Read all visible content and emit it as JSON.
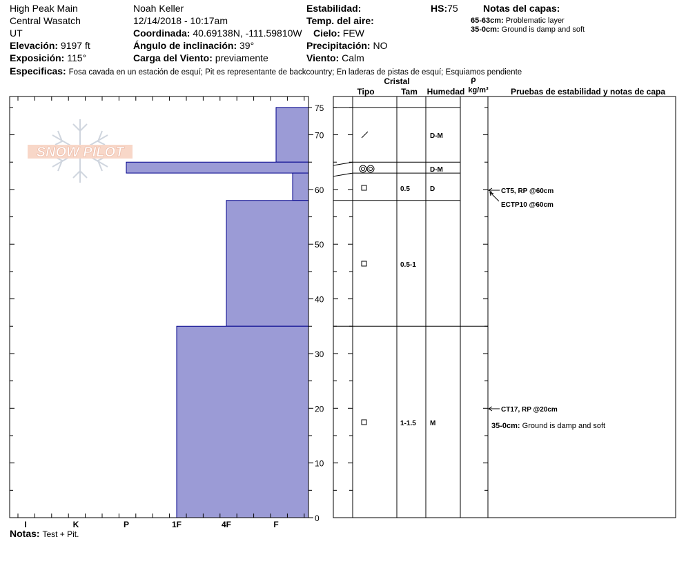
{
  "header": {
    "location": "High Peak Main",
    "observer": "Noah Keller",
    "stability_label": "Estabilidad:",
    "hs_label": "HS:",
    "hs_value": "75",
    "layer_notes_label": "Notas del capas:",
    "region": "Central Wasatch",
    "datetime": "12/14/2018 - 10:17am",
    "air_temp_label": "Temp. del aire:",
    "state": "UT",
    "coord_label": "Coordinada:",
    "coord_value": "40.69138N, -111.59810W",
    "sky_label": "Cielo:",
    "sky_value": "FEW",
    "elev_label": "Elevación:",
    "elev_value": "9197 ft",
    "slope_label": "Ángulo de inclinación:",
    "slope_value": "39°",
    "precip_label": "Precipitación:",
    "precip_value": "NO",
    "aspect_label": "Exposición:",
    "aspect_value": "115°",
    "wind_load_label": "Carga del Viento:",
    "wind_load_value": "previamente",
    "wind_label": "Viento:",
    "wind_value": "Calm",
    "specifics_label": "Especificas:",
    "specifics_value": "Fosa cavada en un estación de esquí; Pit es representante de backcountry; En laderas de pistas de esquí; Esquiamos pendiente",
    "layer_notes": [
      {
        "range": "65-63cm:",
        "text": "Problematic layer"
      },
      {
        "range": "35-0cm:",
        "text": "Ground is damp and soft"
      }
    ]
  },
  "table_headers": {
    "cristal": "Cristal",
    "tipo": "Tipo",
    "tam": "Tam",
    "humedad": "Humedad",
    "rho": "ρ",
    "kgm3": "kg/m³",
    "tests": "Pruebas de estabilidad y notas de capa"
  },
  "footer": {
    "notes_label": "Notas:",
    "notes_value": "Test + Pit."
  },
  "logo": {
    "text": "SNOW PILOT"
  },
  "chart_data": {
    "type": "bar",
    "ylim": [
      0,
      75
    ],
    "y_ticks": [
      0,
      10,
      20,
      30,
      40,
      50,
      60,
      70,
      75
    ],
    "hardness_scale": [
      "I",
      "K",
      "P",
      "1F",
      "4F",
      "F"
    ],
    "hardness_scale_note": "x axis is hand hardness; bar extends from right edge toward harder values",
    "layers": [
      {
        "top": 75,
        "bottom": 65,
        "hardness": "F"
      },
      {
        "top": 65,
        "bottom": 63,
        "hardness": "P"
      },
      {
        "top": 63,
        "bottom": 58,
        "hardness": "F+"
      },
      {
        "top": 58,
        "bottom": 35,
        "hardness": "4F"
      },
      {
        "top": 35,
        "bottom": 0,
        "hardness": "1F"
      }
    ],
    "bar_color": "#9b9bd6"
  },
  "crystal_rows": [
    {
      "grain": "/",
      "size": "",
      "moisture": "D-M"
    },
    {
      "grain": "◎◎",
      "size": "",
      "moisture": "D-M"
    },
    {
      "grain": "□",
      "size": "0.5",
      "moisture": "D"
    },
    {
      "grain": "□",
      "size": "0.5-1",
      "moisture": ""
    },
    {
      "grain": "□",
      "size": "1-1.5",
      "moisture": "M"
    }
  ],
  "tests": [
    {
      "text": "CT5, RP @60cm"
    },
    {
      "text": "ECTP10 @60cm"
    },
    {
      "text": "CT17, RP @20cm"
    }
  ],
  "layer_note_in_table": {
    "range": "35-0cm:",
    "text": "Ground is damp and soft"
  }
}
